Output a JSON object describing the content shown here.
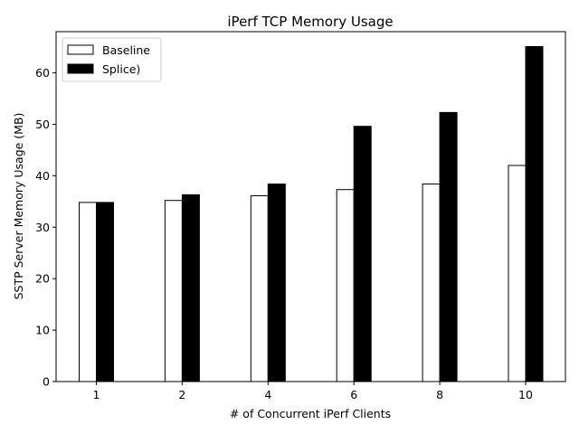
{
  "chart_data": {
    "type": "bar",
    "title": "iPerf TCP Memory Usage",
    "xlabel": "# of Concurrent iPerf Clients",
    "ylabel": "SSTP Server Memory Usage (MB)",
    "categories": [
      "1",
      "2",
      "4",
      "6",
      "8",
      "10"
    ],
    "ylim": [
      0,
      68
    ],
    "yticks": [
      0,
      10,
      20,
      30,
      40,
      50,
      60
    ],
    "grid": false,
    "legend_position": "top-left",
    "series": [
      {
        "name": "Baseline",
        "values": [
          34.8,
          35.2,
          36.1,
          37.3,
          38.4,
          42.0
        ],
        "fill": "#ffffff",
        "stroke": "#000000"
      },
      {
        "name": "Splice)",
        "values": [
          34.8,
          36.3,
          38.4,
          49.6,
          52.3,
          65.1
        ],
        "fill": "#000000",
        "stroke": "#000000"
      }
    ]
  }
}
